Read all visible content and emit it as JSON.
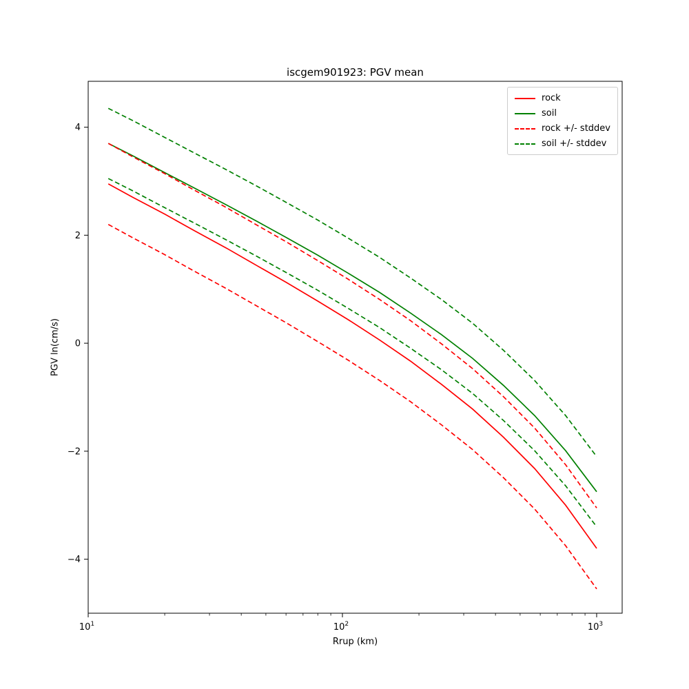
{
  "figure": {
    "title": "iscgem901923: PGV mean",
    "xlabel": "Rrup (km)",
    "ylabel": "PGV ln(cm/s)",
    "x_ticks": [
      {
        "value": 10,
        "base": "10",
        "exp": "1"
      },
      {
        "value": 100,
        "base": "10",
        "exp": "2"
      },
      {
        "value": 1000,
        "base": "10",
        "exp": "3"
      }
    ],
    "y_ticks": [
      {
        "value": 4,
        "label": "4"
      },
      {
        "value": 2,
        "label": "2"
      },
      {
        "value": 0,
        "label": "0"
      },
      {
        "value": -2,
        "label": "−2"
      },
      {
        "value": -4,
        "label": "−4"
      }
    ]
  },
  "legend": {
    "position": "upper right",
    "entries": [
      {
        "label": "rock",
        "color": "#ff0000",
        "dash": false
      },
      {
        "label": "soil",
        "color": "#008000",
        "dash": false
      },
      {
        "label": "rock +/- stddev",
        "color": "#ff0000",
        "dash": true
      },
      {
        "label": "soil +/- stddev",
        "color": "#008000",
        "dash": true
      }
    ]
  },
  "chart_data": {
    "type": "line",
    "title": "iscgem901923: PGV mean",
    "xlabel": "Rrup (km)",
    "ylabel": "PGV ln(cm/s)",
    "x_scale": "log",
    "xlim": [
      10,
      1260
    ],
    "ylim": [
      -5,
      4.85
    ],
    "grid": false,
    "legend_position": "upper right",
    "stddev": {
      "rock": 0.75,
      "soil": 0.65
    },
    "x": [
      12,
      15,
      20,
      26,
      35,
      46,
      60,
      80,
      105,
      140,
      185,
      245,
      325,
      430,
      570,
      755,
      1000
    ],
    "series": [
      {
        "name": "rock",
        "color": "#ff0000",
        "style": "solid",
        "values": [
          2.95,
          2.7,
          2.39,
          2.09,
          1.76,
          1.44,
          1.13,
          0.78,
          0.44,
          0.06,
          -0.33,
          -0.76,
          -1.22,
          -1.74,
          -2.32,
          -3.0,
          -3.8
        ]
      },
      {
        "name": "soil",
        "color": "#008000",
        "style": "solid",
        "values": [
          3.7,
          3.47,
          3.16,
          2.88,
          2.56,
          2.26,
          1.96,
          1.63,
          1.3,
          0.94,
          0.56,
          0.16,
          -0.28,
          -0.78,
          -1.34,
          -1.99,
          -2.75
        ]
      },
      {
        "name": "rock + stddev",
        "color": "#ff0000",
        "style": "dashed",
        "values": [
          3.7,
          3.45,
          3.14,
          2.84,
          2.51,
          2.19,
          1.88,
          1.53,
          1.19,
          0.81,
          0.42,
          -0.01,
          -0.47,
          -0.99,
          -1.57,
          -2.25,
          -3.05
        ]
      },
      {
        "name": "rock - stddev",
        "color": "#ff0000",
        "style": "dashed",
        "values": [
          2.2,
          1.95,
          1.64,
          1.34,
          1.01,
          0.69,
          0.38,
          0.03,
          -0.31,
          -0.69,
          -1.08,
          -1.51,
          -1.97,
          -2.49,
          -3.07,
          -3.75,
          -4.55
        ]
      },
      {
        "name": "soil + stddev",
        "color": "#008000",
        "style": "dashed",
        "values": [
          4.35,
          4.12,
          3.81,
          3.53,
          3.21,
          2.91,
          2.61,
          2.28,
          1.95,
          1.59,
          1.21,
          0.81,
          0.37,
          -0.13,
          -0.69,
          -1.34,
          -2.1
        ]
      },
      {
        "name": "soil - stddev",
        "color": "#008000",
        "style": "dashed",
        "values": [
          3.05,
          2.82,
          2.51,
          2.23,
          1.91,
          1.61,
          1.31,
          0.98,
          0.65,
          0.29,
          -0.09,
          -0.49,
          -0.93,
          -1.43,
          -1.99,
          -2.64,
          -3.4
        ]
      }
    ]
  }
}
